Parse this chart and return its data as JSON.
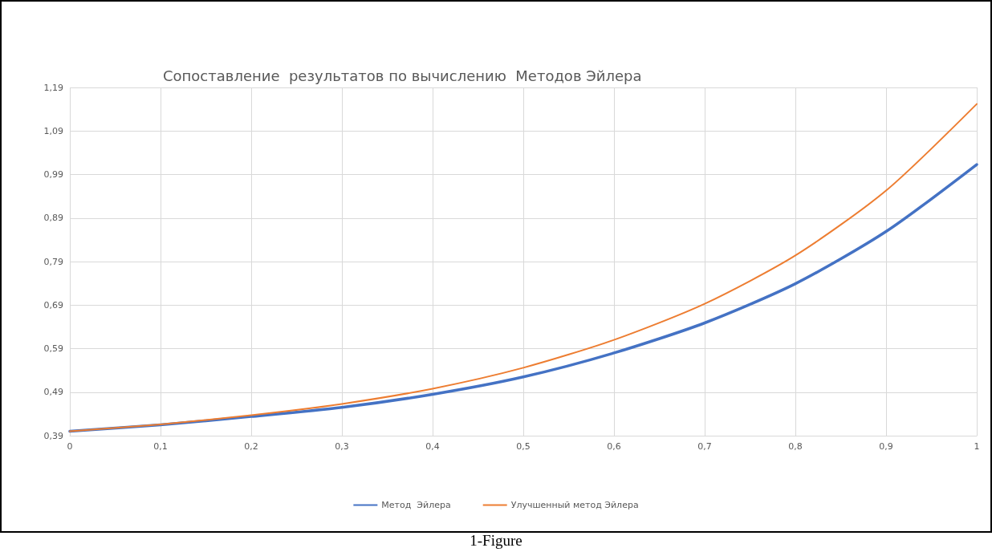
{
  "chart_data": {
    "type": "line",
    "title": "Сопоставление  результатов по вычислению  Методов Эйлера",
    "x": [
      0,
      0.1,
      0.2,
      0.3,
      0.4,
      0.5,
      0.6,
      0.7,
      0.8,
      0.9,
      1
    ],
    "series": [
      {
        "name": "Метод  Эйлера",
        "color": "#4472c4",
        "values": [
          0.4,
          0.415,
          0.434,
          0.455,
          0.485,
          0.525,
          0.58,
          0.649,
          0.739,
          0.859,
          1.013
        ]
      },
      {
        "name": "Улучшенный метод Эйлера",
        "color": "#ed7d31",
        "values": [
          0.4,
          0.416,
          0.437,
          0.463,
          0.498,
          0.546,
          0.61,
          0.693,
          0.804,
          0.953,
          1.152
        ]
      }
    ],
    "xlim": [
      0,
      1
    ],
    "xticks": [
      0,
      {
        "value": 0.1,
        "label": "0,1"
      },
      {
        "value": 0.2,
        "label": "0,2"
      },
      {
        "value": 0.3,
        "label": "0,3"
      },
      {
        "value": 0.4,
        "label": "0,4"
      },
      {
        "value": 0.5,
        "label": "0,5"
      },
      {
        "value": 0.6,
        "label": "0,6"
      },
      {
        "value": 0.7,
        "label": "0,7"
      },
      {
        "value": 0.8,
        "label": "0,8"
      },
      {
        "value": 0.9,
        "label": "0,9"
      },
      1
    ],
    "ylim": [
      0.39,
      1.19
    ],
    "yticks": [
      {
        "value": 0.39,
        "label": "0,39"
      },
      {
        "value": 0.49,
        "label": "0,49"
      },
      {
        "value": 0.59,
        "label": "0,59"
      },
      {
        "value": 0.69,
        "label": "0,69"
      },
      {
        "value": 0.79,
        "label": "0,79"
      },
      {
        "value": 0.89,
        "label": "0,89"
      },
      {
        "value": 0.99,
        "label": "0,99"
      },
      {
        "value": 1.09,
        "label": "1,09"
      },
      {
        "value": 1.19,
        "label": "1,19"
      }
    ],
    "grid": true,
    "legend": "bottom",
    "marker": "none",
    "line_style": "solid",
    "annotations": [
      "1-Figure"
    ]
  }
}
